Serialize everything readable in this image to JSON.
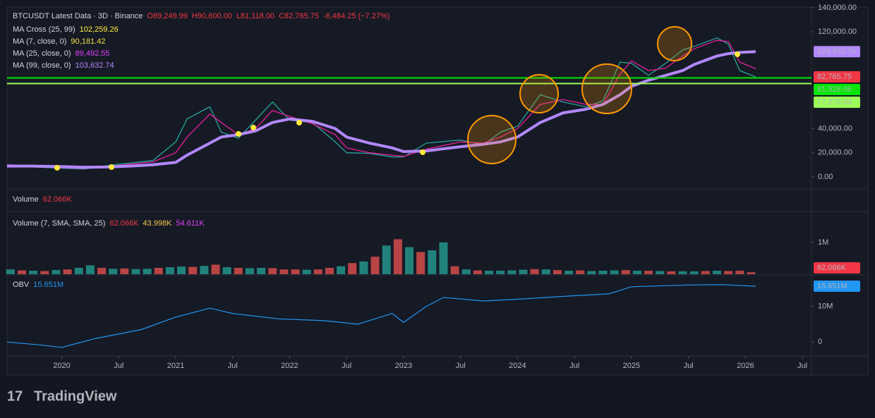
{
  "header": {
    "symbol": "BTCUSDT Latest Data · 3D · Binance",
    "open": "O89,249.99",
    "high": "H90,600.00",
    "low": "L81,118.00",
    "close": "C82,765.75",
    "change": "-6,484.25 (−7.27%)"
  },
  "indicators": [
    {
      "name": "MA Cross (25, 99)",
      "value": "102,259.26",
      "color": "#ffeb3b"
    },
    {
      "name": "MA (7, close, 0)",
      "value": "90,181.42",
      "color": "#f9e04b"
    },
    {
      "name": "MA (25, close, 0)",
      "value": "89,492.55",
      "color": "#e040fb"
    },
    {
      "name": "MA (99, close, 0)",
      "value": "103,632.74",
      "color": "#b388ff"
    }
  ],
  "chart_data": [
    {
      "type": "line",
      "xlim": [
        2019.52,
        2026.58
      ],
      "ylim": [
        -9330,
        140525
      ],
      "yticks": [
        {
          "value": 0,
          "label": "0.00"
        },
        {
          "value": 20000,
          "label": "20,000.00"
        },
        {
          "value": 40000,
          "label": "40,000.00"
        },
        {
          "value": 120000,
          "label": "120,000.00"
        },
        {
          "value": 140000,
          "label": "140,000.00"
        }
      ],
      "x": [
        2019.52,
        2019.75,
        2020.0,
        2020.2,
        2020.4,
        2020.6,
        2020.8,
        2021.0,
        2021.1,
        2021.3,
        2021.4,
        2021.55,
        2021.7,
        2021.85,
        2022.0,
        2022.2,
        2022.4,
        2022.5,
        2022.7,
        2022.9,
        2023.0,
        2023.2,
        2023.5,
        2023.7,
        2023.85,
        2024.0,
        2024.2,
        2024.4,
        2024.6,
        2024.75,
        2024.9,
        2025.0,
        2025.15,
        2025.3,
        2025.45,
        2025.55,
        2025.75,
        2025.85,
        2025.95,
        2026.09
      ],
      "series": [
        {
          "color": "#26a69a",
          "width": 1.3,
          "values": [
            10000,
            8300,
            7200,
            6500,
            9400,
            11500,
            13500,
            29000,
            48000,
            58000,
            37000,
            32000,
            47000,
            62000,
            47000,
            45000,
            29000,
            20000,
            19500,
            16500,
            16600,
            28000,
            30500,
            26500,
            37000,
            42000,
            68000,
            62000,
            58000,
            63000,
            95000,
            94000,
            84000,
            94000,
            105000,
            108000,
            115000,
            110000,
            88000,
            82765.75
          ]
        },
        {
          "color": "#e91e9c",
          "width": 1.3,
          "values": [
            10000,
            9000,
            7500,
            7000,
            8500,
            10500,
            12500,
            20000,
            33000,
            52000,
            45000,
            35000,
            40000,
            55000,
            50000,
            44000,
            35000,
            24000,
            20000,
            18000,
            17000,
            23000,
            29000,
            28000,
            33000,
            40000,
            60000,
            64000,
            60000,
            60000,
            85000,
            96000,
            88000,
            90000,
            100000,
            106000,
            113000,
            112000,
            95000,
            89492.55
          ]
        },
        {
          "color": "#b388ff",
          "width": 4,
          "values": [
            9000,
            9000,
            8500,
            8000,
            8200,
            9000,
            10000,
            12000,
            18000,
            28000,
            33000,
            35000,
            38000,
            45000,
            48000,
            46000,
            40000,
            33000,
            28000,
            24000,
            21000,
            21500,
            25000,
            27000,
            29000,
            33000,
            45000,
            53000,
            56000,
            60000,
            68000,
            75000,
            80000,
            84000,
            88000,
            93000,
            100000,
            102000,
            103000,
            103632.74
          ]
        }
      ],
      "price_labels": [
        {
          "value": 103632.74,
          "label": "103,632.74",
          "color": "#b388ff",
          "text_color": "#131722"
        },
        {
          "value": 82765.75,
          "label": "82,765.75",
          "color": "#f23645",
          "text_color": "#ffffff"
        },
        {
          "value": 81928.06,
          "label": "81,928.06",
          "color": "#00e600",
          "text_color": "#131722",
          "line": true
        },
        {
          "value": 77270.03,
          "label": "77,270.03",
          "color": "#9cff57",
          "text_color": "#131722",
          "line": true
        }
      ]
    },
    {
      "type": "bar",
      "title": "Volume",
      "title_value": "62.066K",
      "legend": "Volume (7, SMA, SMA, 25)",
      "legend_values": [
        {
          "text": "62.066K",
          "color": "#f23645"
        },
        {
          "text": "43.998K",
          "color": "#f9c74f"
        },
        {
          "text": "54.611K",
          "color": "#e040fb"
        }
      ],
      "xlim": [
        2019.52,
        2026.58
      ],
      "ylim": [
        0,
        1950000
      ],
      "yticks": [
        {
          "value": 1000000,
          "label": "1M"
        }
      ],
      "x": [
        2019.55,
        2019.65,
        2019.75,
        2019.85,
        2019.95,
        2020.05,
        2020.15,
        2020.25,
        2020.35,
        2020.45,
        2020.55,
        2020.65,
        2020.75,
        2020.85,
        2020.95,
        2021.05,
        2021.15,
        2021.25,
        2021.35,
        2021.45,
        2021.55,
        2021.65,
        2021.75,
        2021.85,
        2021.95,
        2022.05,
        2022.15,
        2022.25,
        2022.35,
        2022.45,
        2022.55,
        2022.65,
        2022.75,
        2022.85,
        2022.95,
        2023.05,
        2023.15,
        2023.25,
        2023.35,
        2023.45,
        2023.55,
        2023.65,
        2023.75,
        2023.85,
        2023.95,
        2024.05,
        2024.15,
        2024.25,
        2024.35,
        2024.45,
        2024.55,
        2024.65,
        2024.75,
        2024.85,
        2024.95,
        2025.05,
        2025.15,
        2025.25,
        2025.35,
        2025.45,
        2025.55,
        2025.65,
        2025.75,
        2025.85,
        2025.95,
        2026.05
      ],
      "values": [
        150000,
        120000,
        110000,
        100000,
        130000,
        150000,
        200000,
        280000,
        200000,
        170000,
        180000,
        160000,
        170000,
        200000,
        220000,
        240000,
        230000,
        260000,
        300000,
        220000,
        200000,
        190000,
        200000,
        190000,
        150000,
        150000,
        140000,
        150000,
        200000,
        250000,
        350000,
        400000,
        550000,
        900000,
        1100000,
        850000,
        700000,
        750000,
        1000000,
        250000,
        150000,
        120000,
        110000,
        110000,
        120000,
        140000,
        160000,
        150000,
        130000,
        110000,
        120000,
        100000,
        110000,
        120000,
        130000,
        110000,
        110000,
        100000,
        90000,
        90000,
        90000,
        100000,
        110000,
        100000,
        110000,
        62066
      ],
      "colors": [
        "#26a69a",
        "#ef5350",
        "#26a69a",
        "#ef5350",
        "#26a69a",
        "#ef5350",
        "#26a69a",
        "#26a69a",
        "#ef5350",
        "#26a69a",
        "#ef5350",
        "#26a69a",
        "#26a69a",
        "#ef5350",
        "#26a69a",
        "#26a69a",
        "#ef5350",
        "#26a69a",
        "#ef5350",
        "#26a69a",
        "#ef5350",
        "#26a69a",
        "#26a69a",
        "#ef5350",
        "#ef5350",
        "#ef5350",
        "#26a69a",
        "#ef5350",
        "#ef5350",
        "#26a69a",
        "#ef5350",
        "#26a69a",
        "#ef5350",
        "#26a69a",
        "#ef5350",
        "#26a69a",
        "#ef5350",
        "#26a69a",
        "#26a69a",
        "#ef5350",
        "#26a69a",
        "#ef5350",
        "#26a69a",
        "#26a69a",
        "#26a69a",
        "#26a69a",
        "#ef5350",
        "#26a69a",
        "#ef5350",
        "#26a69a",
        "#ef5350",
        "#26a69a",
        "#26a69a",
        "#26a69a",
        "#ef5350",
        "#26a69a",
        "#ef5350",
        "#26a69a",
        "#ef5350",
        "#26a69a",
        "#26a69a",
        "#ef5350",
        "#26a69a",
        "#ef5350",
        "#ef5350",
        "#ef5350"
      ],
      "last_label": {
        "value": 62066,
        "label": "62.066K",
        "color": "#f23645"
      }
    },
    {
      "type": "line",
      "title": "OBV",
      "title_value": "15.651M",
      "xlim": [
        2019.52,
        2026.58
      ],
      "ylim": [
        -3920000,
        18630000
      ],
      "yticks": [
        0,
        {
          "value": 10000000,
          "label": "10M"
        }
      ],
      "xticks": [
        {
          "value": 2020.0,
          "label": "2020"
        },
        {
          "value": 2020.5,
          "label": "Jul"
        },
        {
          "value": 2021.0,
          "label": "2021"
        },
        {
          "value": 2021.5,
          "label": "Jul"
        },
        {
          "value": 2022.0,
          "label": "2022"
        },
        {
          "value": 2022.5,
          "label": "Jul"
        },
        {
          "value": 2023.0,
          "label": "2023"
        },
        {
          "value": 2023.5,
          "label": "Jul"
        },
        {
          "value": 2024.0,
          "label": "2024"
        },
        {
          "value": 2024.5,
          "label": "Jul"
        },
        {
          "value": 2025.0,
          "label": "2025"
        },
        {
          "value": 2025.5,
          "label": "Jul"
        },
        {
          "value": 2026.0,
          "label": "2026"
        },
        {
          "value": 2026.5,
          "label": "Jul"
        }
      ],
      "x": [
        2019.52,
        2019.8,
        2020.0,
        2020.3,
        2020.7,
        2021.0,
        2021.3,
        2021.5,
        2021.9,
        2022.3,
        2022.6,
        2022.9,
        2023.0,
        2023.2,
        2023.35,
        2023.7,
        2024.0,
        2024.5,
        2024.8,
        2025.0,
        2025.5,
        2025.8,
        2026.09
      ],
      "series": [
        {
          "color": "#2196f3",
          "width": 1.2,
          "values": [
            0,
            -800000,
            -1500000,
            1000000,
            3500000,
            7000000,
            9500000,
            8000000,
            6500000,
            6000000,
            5000000,
            8000000,
            5500000,
            10000000,
            12500000,
            11500000,
            12000000,
            13000000,
            13500000,
            15500000,
            16000000,
            16100000,
            15651000
          ]
        }
      ],
      "last_label": {
        "value": 15651000,
        "label": "15.651M",
        "color": "#2196f3"
      }
    }
  ],
  "logo": "TradingView"
}
